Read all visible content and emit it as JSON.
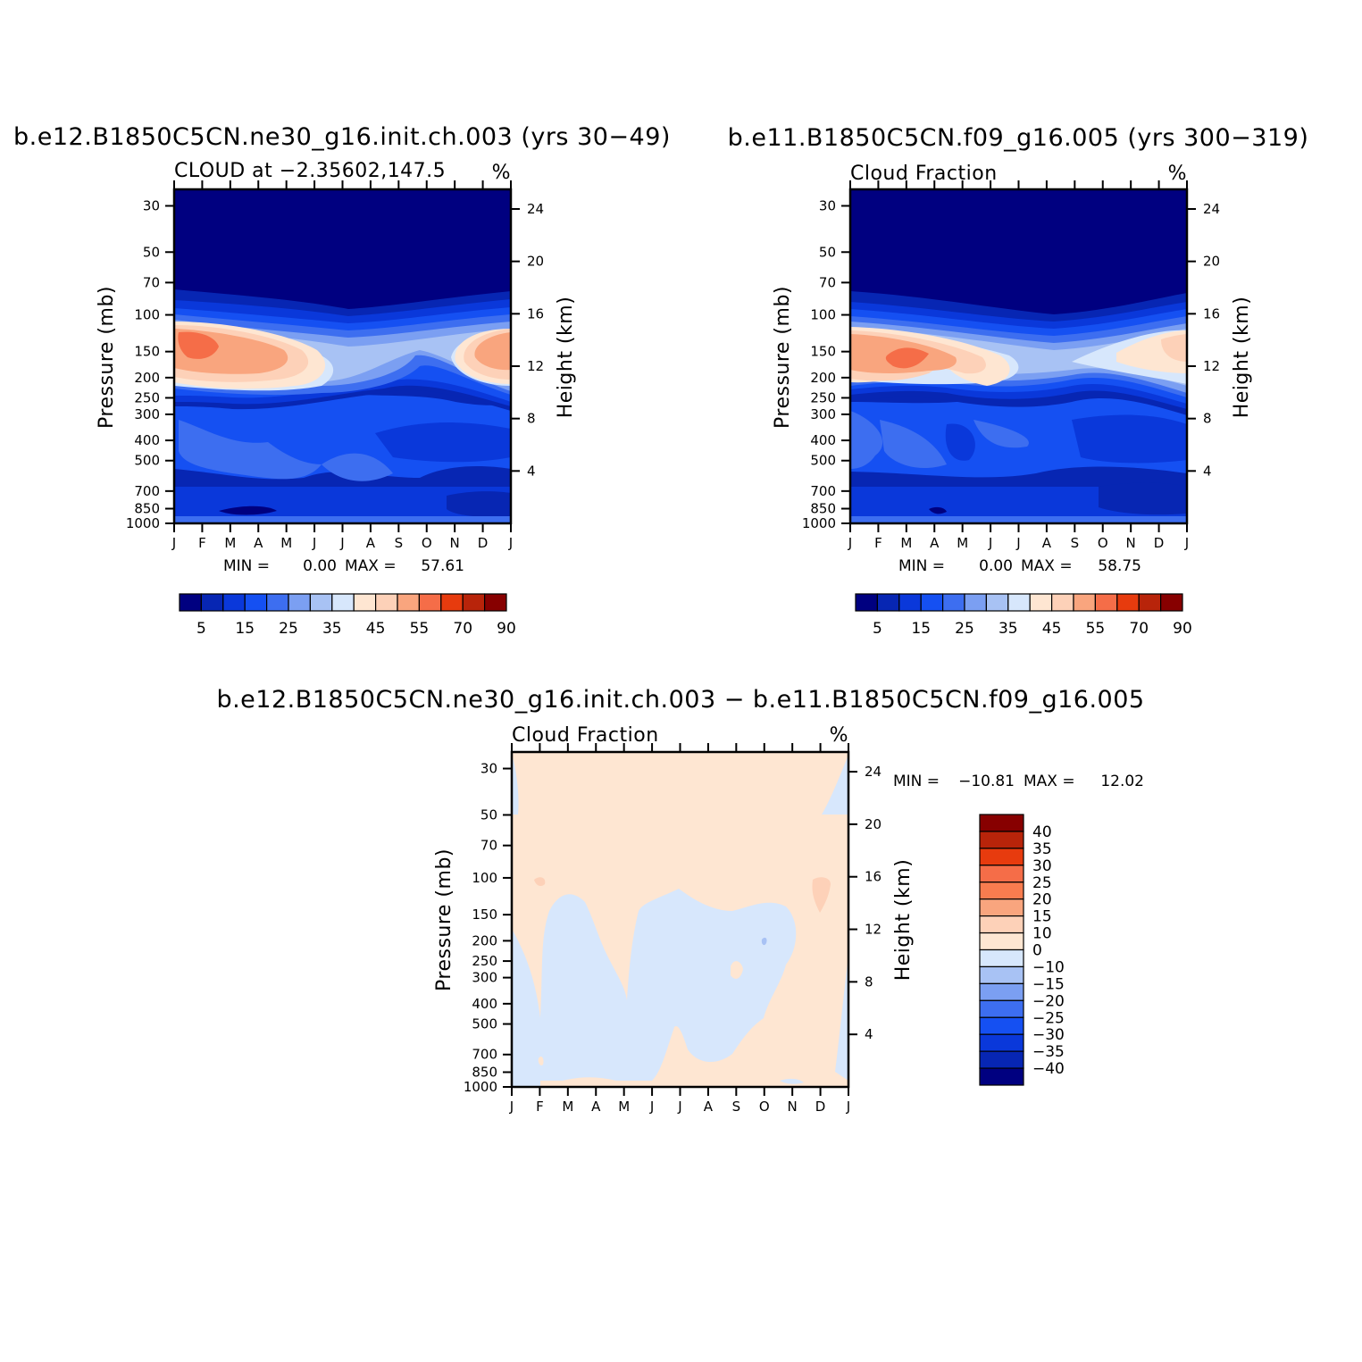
{
  "figure": {
    "panels": [
      {
        "id": "top-left",
        "title": "b.e12.B1850C5CN.ne30_g16.init.ch.003 (yrs 30−49)",
        "subtitle_left": "CLOUD at −2.35602,147.5",
        "subtitle_right": "%",
        "stats": {
          "min_label": "MIN =",
          "min": "0.00",
          "max_label": "MAX =",
          "max": "57.61"
        }
      },
      {
        "id": "top-right",
        "title": "b.e11.B1850C5CN.f09_g16.005 (yrs 300−319)",
        "subtitle_left": "Cloud Fraction",
        "subtitle_right": "%",
        "stats": {
          "min_label": "MIN =",
          "min": "0.00",
          "max_label": "MAX =",
          "max": "58.75"
        }
      },
      {
        "id": "bottom",
        "title": "b.e12.B1850C5CN.ne30_g16.init.ch.003 − b.e11.B1850C5CN.f09_g16.005",
        "subtitle_left": "Cloud Fraction",
        "subtitle_right": "%",
        "stats": {
          "min_label": "MIN =",
          "min": "−10.81",
          "max_label": "MAX =",
          "max": "12.02"
        }
      }
    ],
    "colorbar_abs": {
      "labels": [
        "5",
        "15",
        "25",
        "35",
        "45",
        "55",
        "70",
        "90"
      ],
      "colors": [
        "#000080",
        "#0726b3",
        "#0a38da",
        "#1550f2",
        "#3d6ef0",
        "#7b9ff2",
        "#a8c2f4",
        "#d7e7fc",
        "#fee6d2",
        "#fdd1b8",
        "#f9a57e",
        "#f56d48",
        "#e73b0e",
        "#b8240a",
        "#870000"
      ]
    },
    "colorbar_diff": {
      "labels": [
        "40",
        "35",
        "30",
        "25",
        "20",
        "15",
        "10",
        "0",
        "−10",
        "−15",
        "−20",
        "−25",
        "−30",
        "−35",
        "−40"
      ],
      "colors": [
        "#870000",
        "#b8240a",
        "#e73b0e",
        "#f56d48",
        "#f87c4f",
        "#f9a57e",
        "#fdd1b8",
        "#fee6d2",
        "#d7e7fc",
        "#a8c2f4",
        "#7b9ff2",
        "#3d6ef0",
        "#1550f2",
        "#0a38da",
        "#0726b3",
        "#000080"
      ]
    }
  },
  "chart_data": [
    {
      "type": "heatmap",
      "title": "b.e12.B1850C5CN.ne30_g16.init.ch.003 (yrs 30−49)",
      "variable": "CLOUD at −2.35602,147.5",
      "units": "%",
      "x_tick_labels": [
        "J",
        "F",
        "M",
        "A",
        "M",
        "J",
        "J",
        "A",
        "S",
        "O",
        "N",
        "D",
        "J"
      ],
      "y_left_label": "Pressure (mb)",
      "y_left_ticks": [
        "30",
        "50",
        "70",
        "100",
        "150",
        "200",
        "250",
        "300",
        "400",
        "500",
        "700",
        "850",
        "1000"
      ],
      "y_right_label": "Height (km)",
      "y_right_ticks": [
        "24",
        "20",
        "16",
        "12",
        "8",
        "4"
      ],
      "ylim": [
        1000,
        25
      ],
      "min": 0.0,
      "max": 57.61,
      "features": [
        {
          "note": "upper-level cloud maximum Jan–Apr",
          "x_months": [
            0.0,
            4.5
          ],
          "pressure_mb": [
            120,
            220
          ],
          "value_approx": 55
        },
        {
          "note": "upper-level cloud maximum Nov–Dec",
          "x_months": [
            10.3,
            12.0
          ],
          "pressure_mb": [
            120,
            220
          ],
          "value_approx": 50
        },
        {
          "note": "near-zero cloud above",
          "pressure_mb": [
            25,
            75
          ],
          "value_approx": 0
        }
      ]
    },
    {
      "type": "heatmap",
      "title": "b.e11.B1850C5CN.f09_g16.005 (yrs 300−319)",
      "variable": "Cloud Fraction",
      "units": "%",
      "x_tick_labels": [
        "J",
        "F",
        "M",
        "A",
        "M",
        "J",
        "J",
        "A",
        "S",
        "O",
        "N",
        "D",
        "J"
      ],
      "y_left_label": "Pressure (mb)",
      "y_left_ticks": [
        "30",
        "50",
        "70",
        "100",
        "150",
        "200",
        "250",
        "300",
        "400",
        "500",
        "700",
        "850",
        "1000"
      ],
      "y_right_label": "Height (km)",
      "y_right_ticks": [
        "24",
        "20",
        "16",
        "12",
        "8",
        "4"
      ],
      "ylim": [
        1000,
        25
      ],
      "min": 0.0,
      "max": 58.75,
      "features": [
        {
          "note": "upper-level cloud maximum Jan–May",
          "x_months": [
            0.0,
            5.3
          ],
          "pressure_mb": [
            120,
            230
          ],
          "value_approx": 58
        },
        {
          "note": "upper-level cloud Nov–Dec",
          "x_months": [
            9.8,
            12.0
          ],
          "pressure_mb": [
            120,
            190
          ],
          "value_approx": 45
        },
        {
          "note": "near-zero cloud above",
          "pressure_mb": [
            25,
            75
          ],
          "value_approx": 0
        }
      ]
    },
    {
      "type": "heatmap",
      "title": "b.e12.B1850C5CN.ne30_g16.init.ch.003 − b.e11.B1850C5CN.f09_g16.005",
      "variable": "Cloud Fraction",
      "units": "%",
      "x_tick_labels": [
        "J",
        "F",
        "M",
        "A",
        "M",
        "J",
        "J",
        "A",
        "S",
        "O",
        "N",
        "D",
        "J"
      ],
      "y_left_label": "Pressure (mb)",
      "y_left_ticks": [
        "30",
        "50",
        "70",
        "100",
        "150",
        "200",
        "250",
        "300",
        "400",
        "500",
        "700",
        "850",
        "1000"
      ],
      "y_right_label": "Height (km)",
      "y_right_ticks": [
        "24",
        "20",
        "16",
        "12",
        "8",
        "4"
      ],
      "ylim": [
        1000,
        25
      ],
      "min": -10.81,
      "max": 12.02,
      "features": [
        {
          "note": "mostly 0 to 10 difference",
          "value_approx": 5
        },
        {
          "note": "negative region Feb–Oct lower/mid troposphere",
          "x_months": [
            1.0,
            10.5
          ],
          "pressure_mb": [
            100,
            1000
          ],
          "value_approx": -5
        },
        {
          "note": "small positive maximum early Dec",
          "x_months": [
            11.3,
            11.7
          ],
          "pressure_mb": [
            95,
            140
          ],
          "value_approx": 12
        }
      ]
    }
  ]
}
